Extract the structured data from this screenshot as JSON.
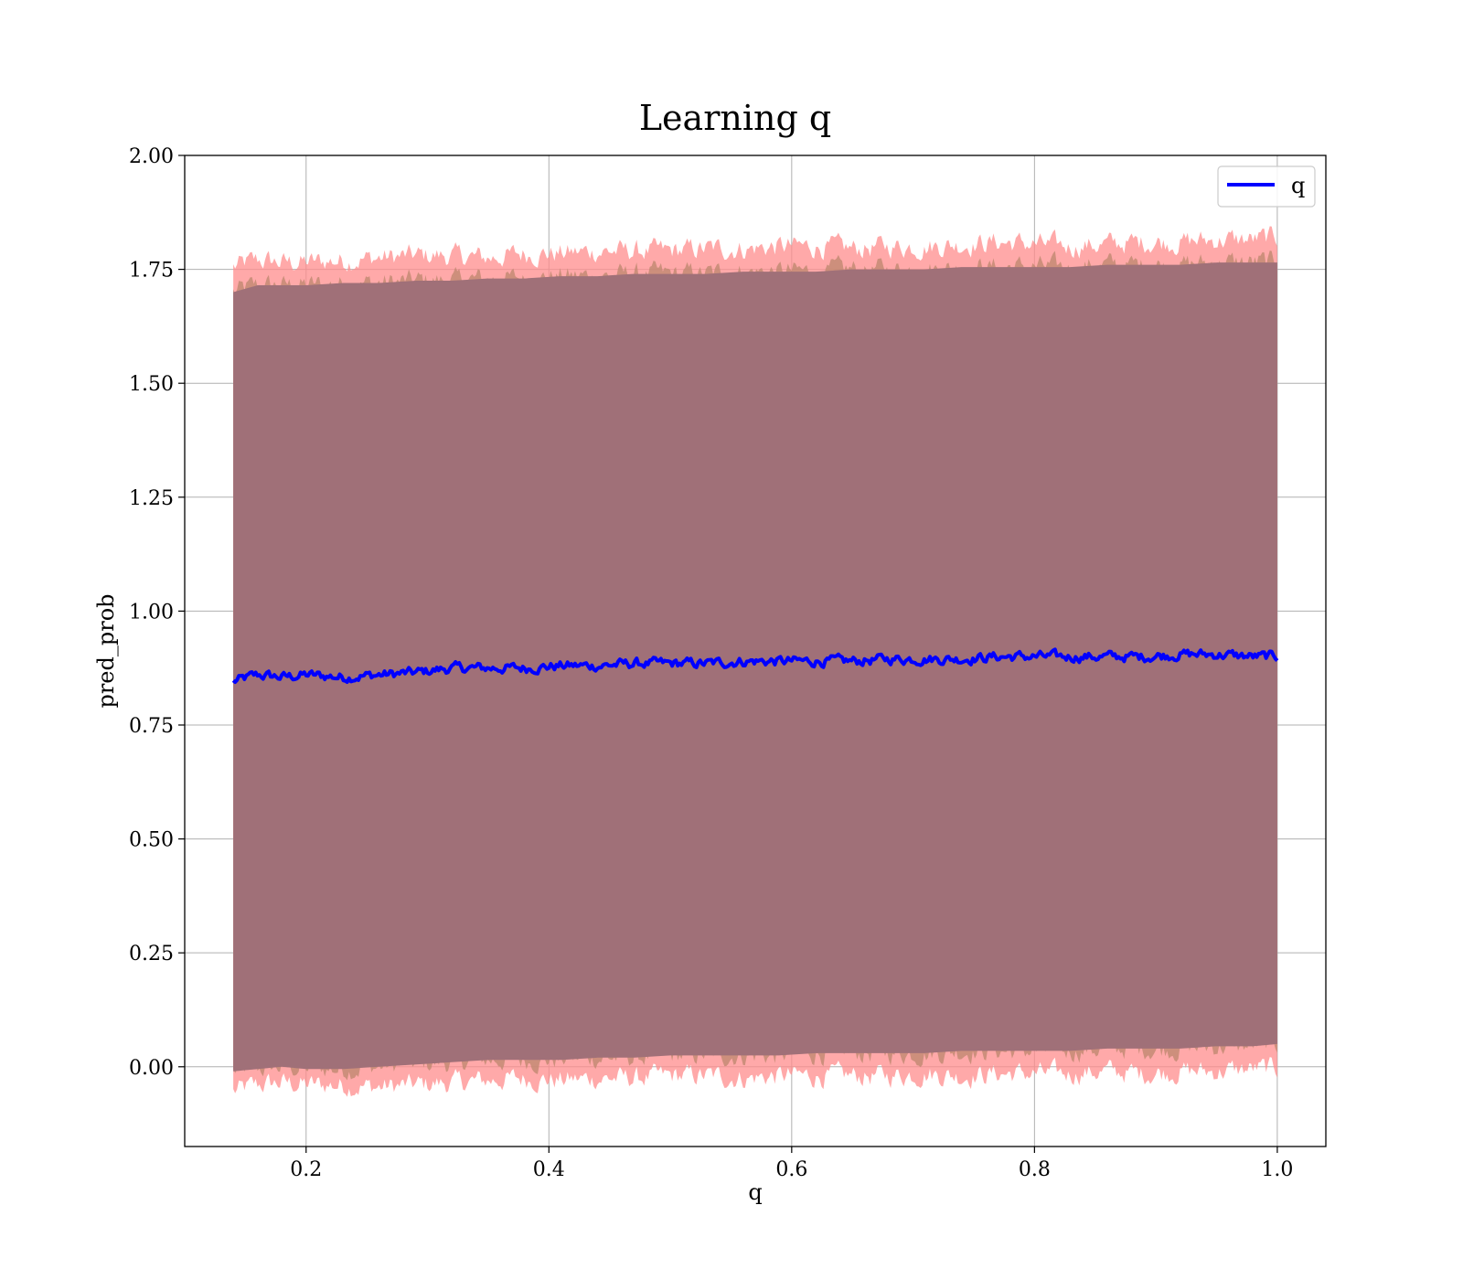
{
  "chart_data": {
    "type": "line",
    "title": "Learning q",
    "xlabel": "q",
    "ylabel": "pred_prob",
    "xlim": [
      0.1,
      1.04
    ],
    "ylim": [
      -0.175,
      2.0
    ],
    "xticks": [
      "0.2",
      "0.4",
      "0.6",
      "0.8",
      "1.0"
    ],
    "xtick_values": [
      0.2,
      0.4,
      0.6,
      0.8,
      1.0
    ],
    "yticks": [
      "0.00",
      "0.25",
      "0.50",
      "0.75",
      "1.00",
      "1.25",
      "1.50",
      "1.75",
      "2.00"
    ],
    "ytick_values": [
      0.0,
      0.25,
      0.5,
      0.75,
      1.0,
      1.25,
      1.5,
      1.75,
      2.0
    ],
    "grid": true,
    "legend": {
      "position": "upper-right",
      "entries": [
        "q"
      ]
    },
    "colors": {
      "line": "#0000ff",
      "band_outer": "#ff8c8c",
      "band_middle": "#c08870",
      "band_inner": "#a07078"
    },
    "series": [
      {
        "name": "q",
        "x": [
          0.14,
          0.16,
          0.18,
          0.2,
          0.23,
          0.26,
          0.29,
          0.32,
          0.35,
          0.38,
          0.41,
          0.44,
          0.47,
          0.5,
          0.53,
          0.56,
          0.59,
          0.62,
          0.65,
          0.68,
          0.71,
          0.74,
          0.77,
          0.8,
          0.83,
          0.86,
          0.89,
          0.92,
          0.95,
          0.98,
          1.0
        ],
        "mean": [
          0.845,
          0.86,
          0.855,
          0.86,
          0.855,
          0.86,
          0.865,
          0.875,
          0.875,
          0.875,
          0.88,
          0.88,
          0.885,
          0.885,
          0.885,
          0.89,
          0.89,
          0.89,
          0.89,
          0.895,
          0.895,
          0.895,
          0.9,
          0.9,
          0.9,
          0.9,
          0.9,
          0.905,
          0.905,
          0.9,
          0.9
        ],
        "band_lower_outer": [
          -0.055,
          -0.04,
          -0.035,
          -0.04,
          -0.04,
          -0.045,
          -0.04,
          -0.035,
          -0.03,
          -0.025,
          -0.03,
          -0.025,
          -0.025,
          -0.02,
          -0.02,
          -0.025,
          -0.02,
          -0.02,
          -0.02,
          -0.02,
          -0.015,
          -0.02,
          -0.015,
          -0.015,
          -0.015,
          -0.01,
          -0.015,
          -0.01,
          -0.01,
          -0.005,
          -0.005
        ],
        "band_upper_outer": [
          1.755,
          1.77,
          1.765,
          1.765,
          1.77,
          1.775,
          1.78,
          1.78,
          1.775,
          1.785,
          1.785,
          1.79,
          1.79,
          1.79,
          1.795,
          1.795,
          1.8,
          1.8,
          1.795,
          1.8,
          1.8,
          1.805,
          1.81,
          1.805,
          1.8,
          1.805,
          1.81,
          1.81,
          1.815,
          1.815,
          1.82
        ],
        "band_lower_inner": [
          -0.01,
          -0.005,
          0.0,
          -0.005,
          -0.005,
          0.0,
          0.005,
          0.01,
          0.015,
          0.015,
          0.015,
          0.02,
          0.02,
          0.025,
          0.025,
          0.025,
          0.025,
          0.03,
          0.03,
          0.03,
          0.03,
          0.035,
          0.035,
          0.035,
          0.035,
          0.04,
          0.04,
          0.04,
          0.045,
          0.045,
          0.05
        ],
        "band_upper_inner": [
          1.7,
          1.715,
          1.715,
          1.715,
          1.72,
          1.72,
          1.725,
          1.725,
          1.73,
          1.73,
          1.735,
          1.735,
          1.74,
          1.74,
          1.74,
          1.745,
          1.745,
          1.745,
          1.75,
          1.75,
          1.75,
          1.755,
          1.755,
          1.755,
          1.755,
          1.76,
          1.76,
          1.76,
          1.765,
          1.765,
          1.765
        ]
      }
    ]
  }
}
